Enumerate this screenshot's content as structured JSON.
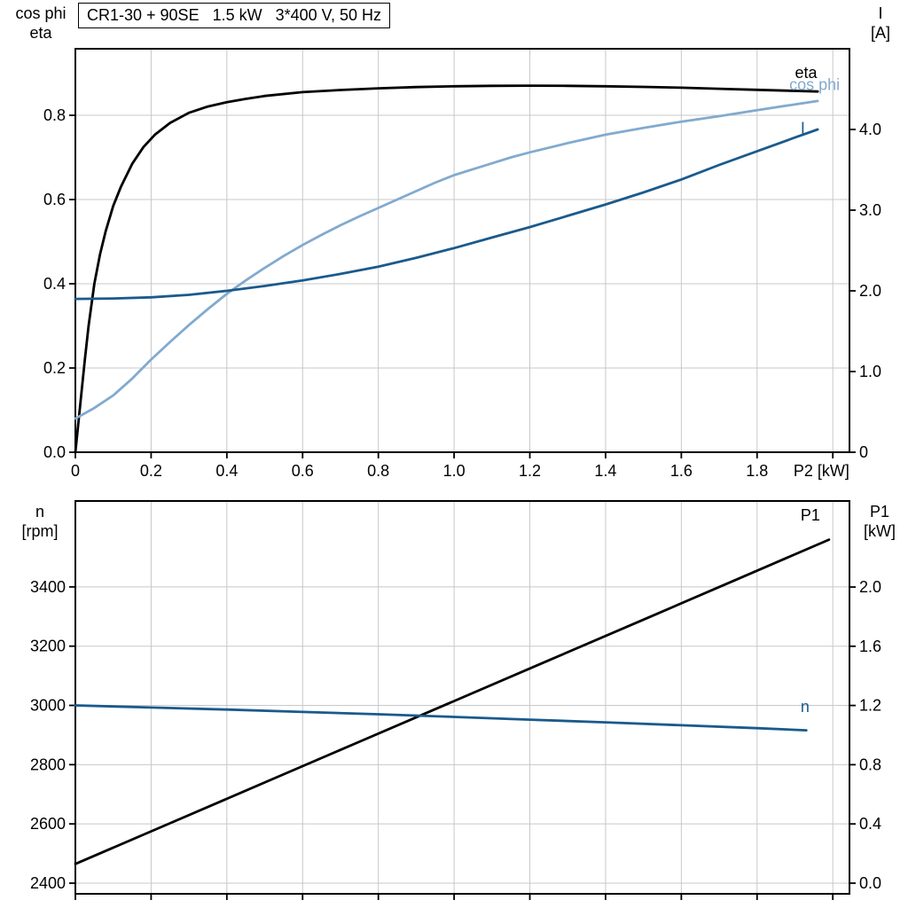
{
  "title": "CR1-30 + 90SE   1.5 kW   3*400 V, 50 Hz",
  "colors": {
    "black": "#000000",
    "dark_blue": "#1a5a8c",
    "light_blue": "#82aacf",
    "grid": "#c8c8c8"
  },
  "chart_data": [
    {
      "type": "line",
      "name": "motor-electrical-curves",
      "x": {
        "min": 0,
        "max": 2.044,
        "ticks": [
          {
            "v": 0,
            "label": "0"
          },
          {
            "v": 0.2,
            "label": "0.2"
          },
          {
            "v": 0.4,
            "label": "0.4"
          },
          {
            "v": 0.6,
            "label": "0.6"
          },
          {
            "v": 0.8,
            "label": "0.8"
          },
          {
            "v": 1.0,
            "label": "1.0"
          },
          {
            "v": 1.2,
            "label": "1.2"
          },
          {
            "v": 1.4,
            "label": "1.4"
          },
          {
            "v": 1.6,
            "label": "1.6"
          },
          {
            "v": 1.8,
            "label": "1.8"
          }
        ],
        "grid_extra": [
          2.0
        ],
        "show_tick_labels": true,
        "end_label": {
          "v": 1.97,
          "text": "P2 [kW]"
        }
      },
      "y_left": {
        "title_lines": [
          "cos phi",
          "eta"
        ],
        "min": 0,
        "max": 0.958,
        "ticks": [
          {
            "v": 0.0,
            "label": "0.0"
          },
          {
            "v": 0.2,
            "label": "0.2"
          },
          {
            "v": 0.4,
            "label": "0.4"
          },
          {
            "v": 0.6,
            "label": "0.6"
          },
          {
            "v": 0.8,
            "label": "0.8"
          }
        ]
      },
      "y_right": {
        "title_lines": [
          "I",
          "[A]"
        ],
        "min": 0,
        "max": 5.0,
        "ticks": [
          {
            "v": 0,
            "label": "0"
          },
          {
            "v": 1,
            "label": "1.0"
          },
          {
            "v": 2,
            "label": "2.0"
          },
          {
            "v": 3,
            "label": "3.0"
          },
          {
            "v": 4,
            "label": "4.0"
          }
        ]
      },
      "series": [
        {
          "name": "eta",
          "axis": "left",
          "color": "#000000",
          "width": 2.8,
          "label": {
            "text": "eta",
            "x": 1.9,
            "y": 0.888,
            "color": "#000000"
          },
          "points": [
            [
              0,
              0
            ],
            [
              0.008,
              0.07
            ],
            [
              0.016,
              0.14
            ],
            [
              0.025,
              0.22
            ],
            [
              0.035,
              0.3
            ],
            [
              0.05,
              0.4
            ],
            [
              0.065,
              0.47
            ],
            [
              0.08,
              0.525
            ],
            [
              0.1,
              0.585
            ],
            [
              0.12,
              0.63
            ],
            [
              0.15,
              0.685
            ],
            [
              0.18,
              0.725
            ],
            [
              0.21,
              0.754
            ],
            [
              0.25,
              0.782
            ],
            [
              0.3,
              0.806
            ],
            [
              0.35,
              0.821
            ],
            [
              0.4,
              0.831
            ],
            [
              0.45,
              0.839
            ],
            [
              0.5,
              0.846
            ],
            [
              0.6,
              0.855
            ],
            [
              0.7,
              0.86
            ],
            [
              0.8,
              0.864
            ],
            [
              0.9,
              0.867
            ],
            [
              1.0,
              0.869
            ],
            [
              1.1,
              0.87
            ],
            [
              1.2,
              0.8705
            ],
            [
              1.3,
              0.87
            ],
            [
              1.4,
              0.869
            ],
            [
              1.5,
              0.8675
            ],
            [
              1.6,
              0.8655
            ],
            [
              1.7,
              0.863
            ],
            [
              1.8,
              0.8605
            ],
            [
              1.9,
              0.858
            ],
            [
              1.96,
              0.8565
            ]
          ]
        },
        {
          "name": "cos phi",
          "axis": "left",
          "color": "#82aacf",
          "width": 2.8,
          "label": {
            "text": "cos phi",
            "x": 1.885,
            "y": 0.86,
            "color": "#82aacf"
          },
          "points": [
            [
              0,
              0.08
            ],
            [
              0.05,
              0.105
            ],
            [
              0.1,
              0.135
            ],
            [
              0.15,
              0.175
            ],
            [
              0.2,
              0.22
            ],
            [
              0.25,
              0.262
            ],
            [
              0.3,
              0.302
            ],
            [
              0.35,
              0.34
            ],
            [
              0.4,
              0.376
            ],
            [
              0.45,
              0.408
            ],
            [
              0.5,
              0.438
            ],
            [
              0.55,
              0.466
            ],
            [
              0.6,
              0.492
            ],
            [
              0.65,
              0.516
            ],
            [
              0.7,
              0.539
            ],
            [
              0.75,
              0.56
            ],
            [
              0.8,
              0.58
            ],
            [
              0.85,
              0.6
            ],
            [
              0.9,
              0.62
            ],
            [
              0.95,
              0.64
            ],
            [
              1.0,
              0.658
            ],
            [
              1.05,
              0.672
            ],
            [
              1.1,
              0.686
            ],
            [
              1.15,
              0.7
            ],
            [
              1.2,
              0.712
            ],
            [
              1.3,
              0.734
            ],
            [
              1.4,
              0.754
            ],
            [
              1.5,
              0.77
            ],
            [
              1.6,
              0.785
            ],
            [
              1.7,
              0.798
            ],
            [
              1.8,
              0.812
            ],
            [
              1.9,
              0.826
            ],
            [
              1.96,
              0.834
            ]
          ]
        },
        {
          "name": "I",
          "axis": "right",
          "color": "#1a5a8c",
          "width": 2.8,
          "label": {
            "text": "I",
            "x": 1.915,
            "y": 3.95,
            "color": "#1a5a8c"
          },
          "points": [
            [
              0,
              1.9
            ],
            [
              0.1,
              1.905
            ],
            [
              0.2,
              1.92
            ],
            [
              0.3,
              1.95
            ],
            [
              0.4,
              2.0
            ],
            [
              0.5,
              2.06
            ],
            [
              0.6,
              2.13
            ],
            [
              0.7,
              2.21
            ],
            [
              0.8,
              2.3
            ],
            [
              0.9,
              2.41
            ],
            [
              1.0,
              2.53
            ],
            [
              1.1,
              2.66
            ],
            [
              1.2,
              2.79
            ],
            [
              1.3,
              2.93
            ],
            [
              1.4,
              3.07
            ],
            [
              1.5,
              3.22
            ],
            [
              1.6,
              3.38
            ],
            [
              1.7,
              3.56
            ],
            [
              1.8,
              3.73
            ],
            [
              1.9,
              3.9
            ],
            [
              1.96,
              4.0
            ]
          ]
        }
      ]
    },
    {
      "type": "line",
      "name": "speed-and-input-power-curves",
      "x": {
        "min": 0,
        "max": 2.044,
        "ticks": [
          {
            "v": 0,
            "label": "0"
          },
          {
            "v": 0.2,
            "label": "0.2"
          },
          {
            "v": 0.4,
            "label": "0.4"
          },
          {
            "v": 0.6,
            "label": "0.6"
          },
          {
            "v": 0.8,
            "label": "0.8"
          },
          {
            "v": 1.0,
            "label": "1.0"
          },
          {
            "v": 1.2,
            "label": "1.2"
          },
          {
            "v": 1.4,
            "label": "1.4"
          },
          {
            "v": 1.6,
            "label": "1.6"
          },
          {
            "v": 1.8,
            "label": "1.8"
          }
        ],
        "grid_extra": [
          2.0
        ],
        "show_tick_labels": false
      },
      "y_left": {
        "title_lines": [
          "n",
          "[rpm]"
        ],
        "min": 2364,
        "max": 3690,
        "ticks": [
          {
            "v": 2400,
            "label": "2400"
          },
          {
            "v": 2600,
            "label": "2600"
          },
          {
            "v": 2800,
            "label": "2800"
          },
          {
            "v": 3000,
            "label": "3000"
          },
          {
            "v": 3200,
            "label": "3200"
          },
          {
            "v": 3400,
            "label": "3400"
          }
        ]
      },
      "y_right": {
        "title_lines": [
          "P1",
          "[kW]"
        ],
        "min": -0.072,
        "max": 2.581,
        "ticks": [
          {
            "v": 0.0,
            "label": "0.0"
          },
          {
            "v": 0.4,
            "label": "0.4"
          },
          {
            "v": 0.8,
            "label": "0.8"
          },
          {
            "v": 1.2,
            "label": "1.2"
          },
          {
            "v": 1.6,
            "label": "1.6"
          },
          {
            "v": 2.0,
            "label": "2.0"
          }
        ]
      },
      "series": [
        {
          "name": "P1",
          "axis": "right",
          "color": "#000000",
          "width": 2.8,
          "label": {
            "text": "P1",
            "x": 1.915,
            "y": 2.45,
            "color": "#000000"
          },
          "points": [
            [
              0,
              0.13
            ],
            [
              0.25,
              0.405
            ],
            [
              0.5,
              0.68
            ],
            [
              0.75,
              0.955
            ],
            [
              1.0,
              1.23
            ],
            [
              1.25,
              1.505
            ],
            [
              1.5,
              1.78
            ],
            [
              1.75,
              2.055
            ],
            [
              1.99,
              2.32
            ]
          ]
        },
        {
          "name": "n",
          "axis": "left",
          "color": "#1a5a8c",
          "width": 2.8,
          "label": {
            "text": "n",
            "x": 1.915,
            "y": 2978,
            "color": "#1a5a8c"
          },
          "points": [
            [
              0,
              3000
            ],
            [
              0.2,
              2993
            ],
            [
              0.4,
              2986
            ],
            [
              0.6,
              2978
            ],
            [
              0.8,
              2970
            ],
            [
              1.0,
              2961
            ],
            [
              1.2,
              2952
            ],
            [
              1.4,
              2943
            ],
            [
              1.6,
              2933
            ],
            [
              1.8,
              2923
            ],
            [
              1.93,
              2916
            ]
          ]
        }
      ]
    }
  ]
}
